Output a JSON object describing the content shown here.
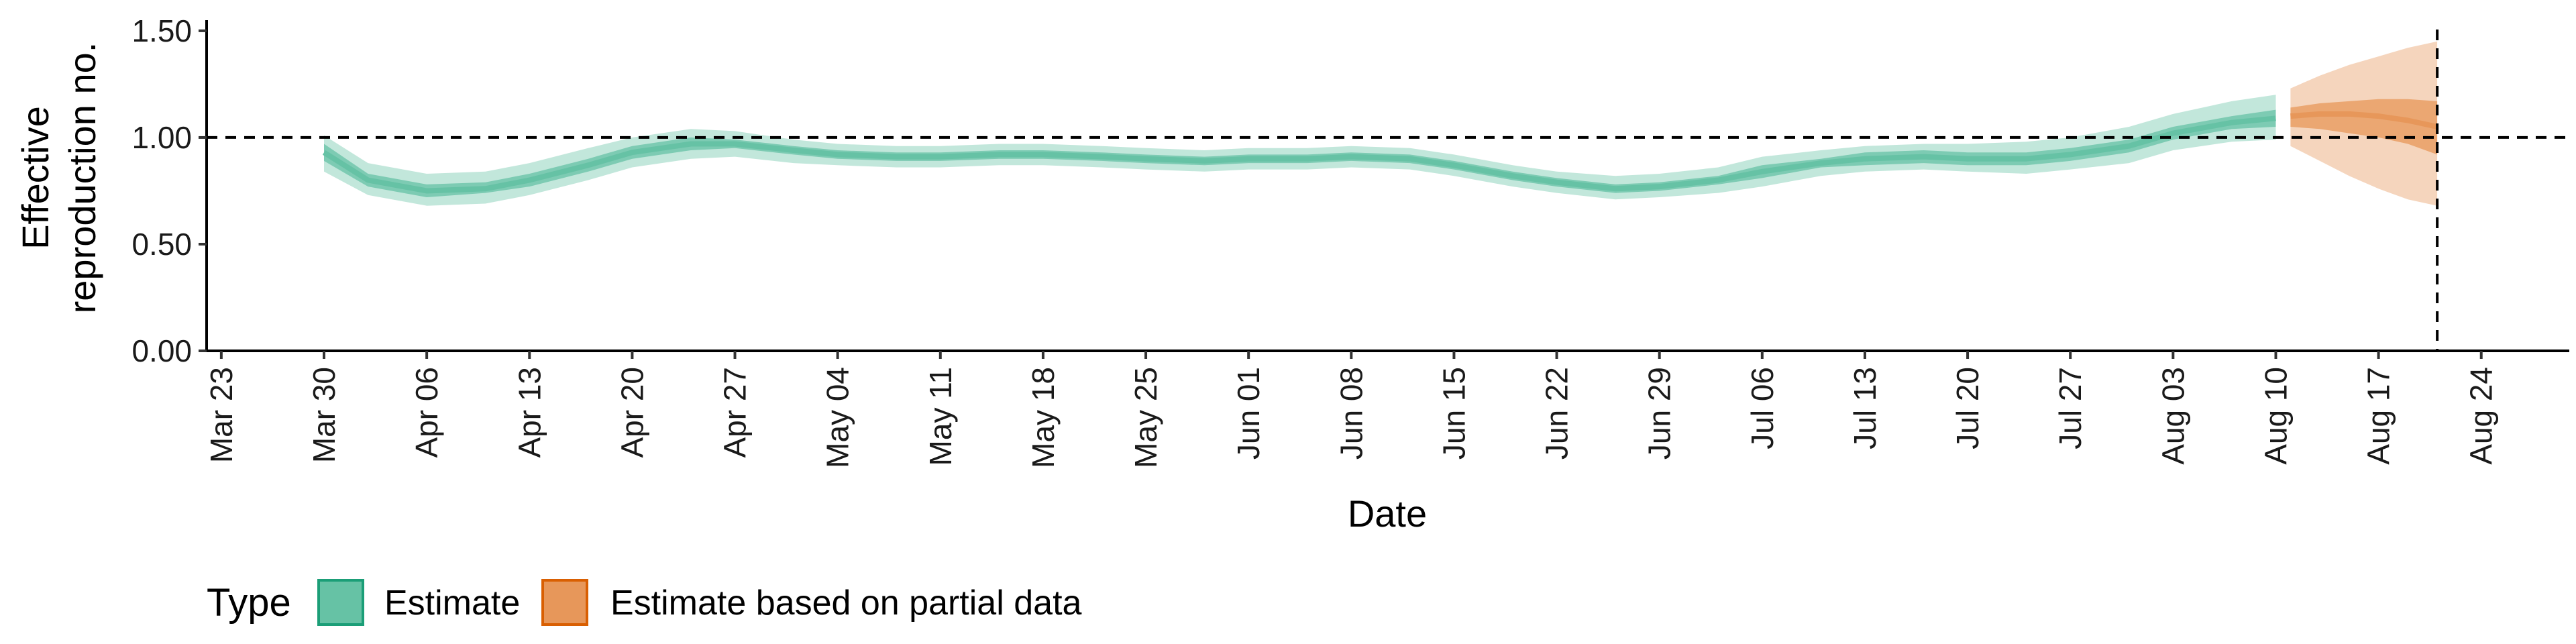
{
  "chart_data": {
    "type": "area",
    "title": "",
    "xlabel": "Date",
    "ylabel_lines": [
      "Effective",
      "reproduction no."
    ],
    "x_domain": [
      "2020-03-22",
      "2020-08-30"
    ],
    "ylim": [
      0,
      1.55
    ],
    "y_ticks": [
      0.0,
      0.5,
      1.0,
      1.5
    ],
    "y_tick_labels": [
      "0.00",
      "0.50",
      "1.00",
      "1.50"
    ],
    "x_ticks": [
      "2020-03-23",
      "2020-03-30",
      "2020-04-06",
      "2020-04-13",
      "2020-04-20",
      "2020-04-27",
      "2020-05-04",
      "2020-05-11",
      "2020-05-18",
      "2020-05-25",
      "2020-06-01",
      "2020-06-08",
      "2020-06-15",
      "2020-06-22",
      "2020-06-29",
      "2020-07-06",
      "2020-07-13",
      "2020-07-20",
      "2020-07-27",
      "2020-08-03",
      "2020-08-10",
      "2020-08-17",
      "2020-08-24"
    ],
    "x_tick_labels": [
      "Mar 23",
      "Mar 30",
      "Apr 06",
      "Apr 13",
      "Apr 20",
      "Apr 27",
      "May 04",
      "May 11",
      "May 18",
      "May 25",
      "Jun 01",
      "Jun 08",
      "Jun 15",
      "Jun 22",
      "Jun 29",
      "Jul 06",
      "Jul 13",
      "Jul 20",
      "Jul 27",
      "Aug 03",
      "Aug 10",
      "Aug 17",
      "Aug 24"
    ],
    "hline": 1.0,
    "vline": "2020-08-21",
    "grid": false,
    "legend_position": "bottom",
    "legend_title": "Type",
    "series": [
      {
        "name": "Estimate",
        "color": "#66c2a5",
        "edge_color": "#1b9e77",
        "x": [
          "2020-03-30",
          "2020-04-02",
          "2020-04-06",
          "2020-04-10",
          "2020-04-13",
          "2020-04-17",
          "2020-04-20",
          "2020-04-24",
          "2020-04-27",
          "2020-05-01",
          "2020-05-04",
          "2020-05-08",
          "2020-05-11",
          "2020-05-15",
          "2020-05-18",
          "2020-05-22",
          "2020-05-25",
          "2020-05-29",
          "2020-06-01",
          "2020-06-05",
          "2020-06-08",
          "2020-06-12",
          "2020-06-15",
          "2020-06-19",
          "2020-06-22",
          "2020-06-26",
          "2020-06-29",
          "2020-07-03",
          "2020-07-06",
          "2020-07-10",
          "2020-07-13",
          "2020-07-17",
          "2020-07-20",
          "2020-07-24",
          "2020-07-27",
          "2020-07-31",
          "2020-08-03",
          "2020-08-07",
          "2020-08-10"
        ],
        "median": [
          0.93,
          0.8,
          0.75,
          0.76,
          0.8,
          0.87,
          0.93,
          0.97,
          0.97,
          0.94,
          0.92,
          0.91,
          0.91,
          0.92,
          0.92,
          0.91,
          0.9,
          0.89,
          0.9,
          0.9,
          0.91,
          0.9,
          0.87,
          0.82,
          0.79,
          0.76,
          0.77,
          0.8,
          0.84,
          0.88,
          0.9,
          0.91,
          0.9,
          0.9,
          0.92,
          0.96,
          1.02,
          1.07,
          1.09
        ],
        "inner_low": [
          0.89,
          0.77,
          0.72,
          0.74,
          0.77,
          0.84,
          0.9,
          0.94,
          0.95,
          0.92,
          0.9,
          0.89,
          0.89,
          0.9,
          0.9,
          0.89,
          0.88,
          0.87,
          0.88,
          0.88,
          0.89,
          0.88,
          0.85,
          0.8,
          0.77,
          0.74,
          0.75,
          0.78,
          0.81,
          0.86,
          0.87,
          0.88,
          0.87,
          0.87,
          0.89,
          0.93,
          0.99,
          1.04,
          1.05
        ],
        "inner_high": [
          0.97,
          0.83,
          0.78,
          0.79,
          0.83,
          0.9,
          0.96,
          1.0,
          0.99,
          0.96,
          0.94,
          0.93,
          0.93,
          0.94,
          0.94,
          0.93,
          0.92,
          0.91,
          0.92,
          0.92,
          0.93,
          0.92,
          0.89,
          0.84,
          0.81,
          0.78,
          0.79,
          0.82,
          0.87,
          0.9,
          0.93,
          0.94,
          0.93,
          0.93,
          0.95,
          0.99,
          1.05,
          1.1,
          1.13
        ],
        "outer_low": [
          0.84,
          0.73,
          0.68,
          0.69,
          0.73,
          0.8,
          0.86,
          0.9,
          0.91,
          0.88,
          0.87,
          0.86,
          0.86,
          0.87,
          0.87,
          0.86,
          0.85,
          0.84,
          0.85,
          0.85,
          0.86,
          0.85,
          0.82,
          0.77,
          0.74,
          0.71,
          0.72,
          0.74,
          0.77,
          0.82,
          0.84,
          0.85,
          0.84,
          0.83,
          0.85,
          0.88,
          0.94,
          0.98,
          0.99
        ],
        "outer_high": [
          1.01,
          0.88,
          0.83,
          0.84,
          0.88,
          0.95,
          1.0,
          1.04,
          1.03,
          0.99,
          0.97,
          0.96,
          0.96,
          0.97,
          0.97,
          0.96,
          0.95,
          0.94,
          0.95,
          0.95,
          0.96,
          0.95,
          0.92,
          0.87,
          0.84,
          0.82,
          0.83,
          0.86,
          0.91,
          0.94,
          0.96,
          0.97,
          0.97,
          0.98,
          1.0,
          1.05,
          1.11,
          1.17,
          1.2
        ]
      },
      {
        "name": "Estimate based on partial data",
        "color": "#e7975a",
        "edge_color": "#d95f02",
        "x": [
          "2020-08-11",
          "2020-08-13",
          "2020-08-15",
          "2020-08-17",
          "2020-08-19",
          "2020-08-21"
        ],
        "median": [
          1.1,
          1.11,
          1.11,
          1.1,
          1.08,
          1.05
        ],
        "inner_low": [
          1.05,
          1.04,
          1.02,
          1.0,
          0.97,
          0.92
        ],
        "inner_high": [
          1.14,
          1.16,
          1.17,
          1.18,
          1.18,
          1.17
        ],
        "outer_low": [
          0.96,
          0.89,
          0.82,
          0.76,
          0.71,
          0.68
        ],
        "outer_high": [
          1.23,
          1.29,
          1.34,
          1.38,
          1.42,
          1.45
        ]
      }
    ]
  }
}
